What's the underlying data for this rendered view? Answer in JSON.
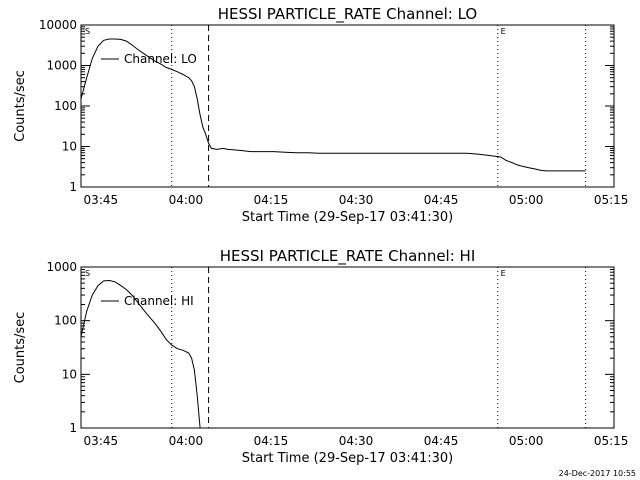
{
  "footer": {
    "timestamp": "24-Dec-2017 10:55"
  },
  "chart_data": [
    {
      "type": "line",
      "title": "HESSI PARTICLE_RATE Channel: LO",
      "xlabel": "Start Time (29-Sep-17 03:41:30)",
      "ylabel": "Counts/sec",
      "yscale": "log",
      "xlim_minutes": [
        0,
        94
      ],
      "ylim": [
        1,
        10000
      ],
      "x_ticks": [
        {
          "t": 3.5,
          "label": "03:45"
        },
        {
          "t": 18.5,
          "label": "04:00"
        },
        {
          "t": 33.5,
          "label": "04:15"
        },
        {
          "t": 48.5,
          "label": "04:30"
        },
        {
          "t": 63.5,
          "label": "04:45"
        },
        {
          "t": 78.5,
          "label": "05:00"
        },
        {
          "t": 93.5,
          "label": "05:15"
        }
      ],
      "y_ticks": [
        {
          "v": 1,
          "label": "1"
        },
        {
          "v": 10,
          "label": "10"
        },
        {
          "v": 100,
          "label": "100"
        },
        {
          "v": 1000,
          "label": "1000"
        },
        {
          "v": 10000,
          "label": "10000"
        }
      ],
      "markers": [
        {
          "t": 16,
          "style": "dotted"
        },
        {
          "t": 22.5,
          "style": "dashed"
        },
        {
          "t": 73.5,
          "style": "dotted"
        },
        {
          "t": 89,
          "style": "dotted"
        }
      ],
      "flags": [
        {
          "t": 0.7,
          "label": "S"
        },
        {
          "t": 74,
          "label": "E"
        }
      ],
      "legend": "Channel: LO",
      "series": [
        {
          "name": "Channel: LO",
          "points": [
            [
              0,
              150
            ],
            [
              1,
              500
            ],
            [
              2,
              1500
            ],
            [
              3,
              3000
            ],
            [
              4,
              4200
            ],
            [
              5,
              4500
            ],
            [
              6,
              4500
            ],
            [
              7,
              4400
            ],
            [
              8,
              4000
            ],
            [
              9,
              3200
            ],
            [
              10,
              2500
            ],
            [
              11,
              2000
            ],
            [
              12,
              1600
            ],
            [
              13,
              1300
            ],
            [
              14,
              1100
            ],
            [
              15,
              900
            ],
            [
              16,
              800
            ],
            [
              17,
              700
            ],
            [
              18,
              600
            ],
            [
              19,
              500
            ],
            [
              19.5,
              420
            ],
            [
              20,
              300
            ],
            [
              20.5,
              150
            ],
            [
              21,
              60
            ],
            [
              21.5,
              30
            ],
            [
              22,
              20
            ],
            [
              22.5,
              12
            ],
            [
              23,
              9
            ],
            [
              24,
              8.5
            ],
            [
              25,
              9
            ],
            [
              26,
              8.5
            ],
            [
              28,
              8
            ],
            [
              30,
              7.5
            ],
            [
              32,
              7.5
            ],
            [
              34,
              7.5
            ],
            [
              36,
              7.2
            ],
            [
              38,
              7
            ],
            [
              40,
              7
            ],
            [
              42,
              6.8
            ],
            [
              44,
              6.8
            ],
            [
              46,
              6.8
            ],
            [
              48,
              6.8
            ],
            [
              50,
              6.8
            ],
            [
              52,
              6.8
            ],
            [
              54,
              6.8
            ],
            [
              56,
              6.8
            ],
            [
              58,
              6.8
            ],
            [
              60,
              6.8
            ],
            [
              62,
              6.8
            ],
            [
              64,
              6.8
            ],
            [
              66,
              6.8
            ],
            [
              68,
              6.8
            ],
            [
              70,
              6.5
            ],
            [
              72,
              6
            ],
            [
              74,
              5.5
            ],
            [
              75,
              4.5
            ],
            [
              76,
              4
            ],
            [
              77,
              3.5
            ],
            [
              78,
              3.2
            ],
            [
              79,
              3
            ],
            [
              80,
              2.8
            ],
            [
              81,
              2.6
            ],
            [
              82,
              2.5
            ],
            [
              83,
              2.5
            ],
            [
              84,
              2.5
            ],
            [
              85,
              2.5
            ],
            [
              86,
              2.5
            ],
            [
              87,
              2.5
            ],
            [
              88,
              2.5
            ],
            [
              89,
              2.5
            ]
          ]
        }
      ]
    },
    {
      "type": "line",
      "title": "HESSI PARTICLE_RATE Channel: HI",
      "xlabel": "Start Time (29-Sep-17 03:41:30)",
      "ylabel": "Counts/sec",
      "yscale": "log",
      "xlim_minutes": [
        0,
        94
      ],
      "ylim": [
        1,
        1000
      ],
      "x_ticks": [
        {
          "t": 3.5,
          "label": "03:45"
        },
        {
          "t": 18.5,
          "label": "04:00"
        },
        {
          "t": 33.5,
          "label": "04:15"
        },
        {
          "t": 48.5,
          "label": "04:30"
        },
        {
          "t": 63.5,
          "label": "04:45"
        },
        {
          "t": 78.5,
          "label": "05:00"
        },
        {
          "t": 93.5,
          "label": "05:15"
        }
      ],
      "y_ticks": [
        {
          "v": 1,
          "label": "1"
        },
        {
          "v": 10,
          "label": "10"
        },
        {
          "v": 100,
          "label": "100"
        },
        {
          "v": 1000,
          "label": "1000"
        }
      ],
      "markers": [
        {
          "t": 16,
          "style": "dotted"
        },
        {
          "t": 22.5,
          "style": "dashed"
        },
        {
          "t": 73.5,
          "style": "dotted"
        },
        {
          "t": 89,
          "style": "dotted"
        }
      ],
      "flags": [
        {
          "t": 0.7,
          "label": "S"
        },
        {
          "t": 74,
          "label": "E"
        }
      ],
      "legend": "Channel: HI",
      "series": [
        {
          "name": "Channel: HI",
          "points": [
            [
              0,
              50
            ],
            [
              1,
              150
            ],
            [
              2,
              300
            ],
            [
              3,
              450
            ],
            [
              4,
              550
            ],
            [
              5,
              560
            ],
            [
              6,
              530
            ],
            [
              7,
              450
            ],
            [
              8,
              380
            ],
            [
              9,
              300
            ],
            [
              10,
              220
            ],
            [
              11,
              160
            ],
            [
              12,
              120
            ],
            [
              13,
              90
            ],
            [
              14,
              65
            ],
            [
              15,
              45
            ],
            [
              16,
              35
            ],
            [
              17,
              30
            ],
            [
              18,
              28
            ],
            [
              19,
              25
            ],
            [
              19.5,
              20
            ],
            [
              20,
              12
            ],
            [
              20.5,
              4
            ],
            [
              21,
              1
            ]
          ]
        }
      ]
    }
  ]
}
